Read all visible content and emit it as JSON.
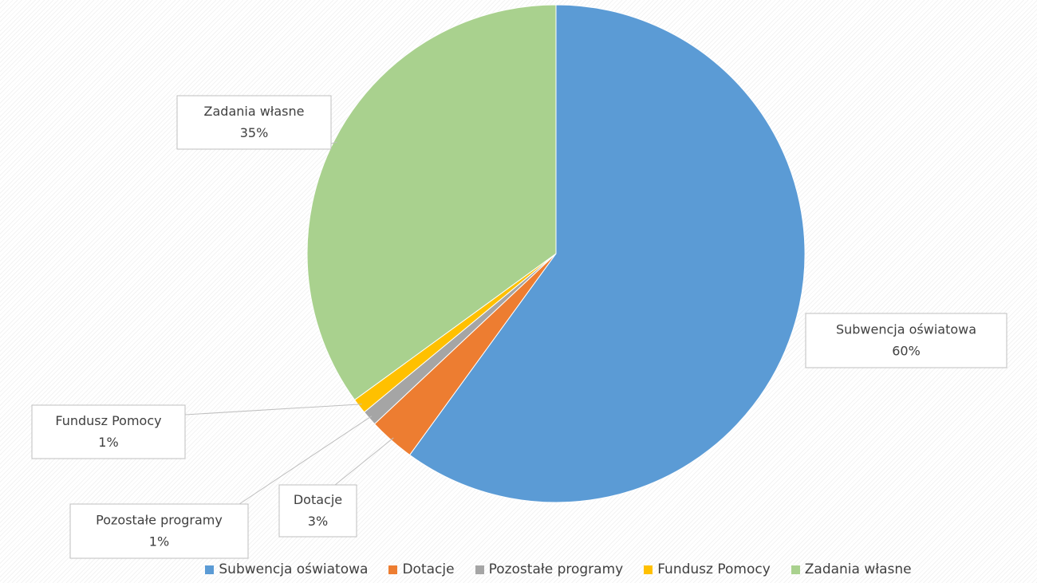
{
  "chart_data": {
    "type": "pie",
    "categories": [
      "Subwencja oświatowa",
      "Dotacje",
      "Pozostałe programy",
      "Fundusz Pomocy",
      "Zadania własne"
    ],
    "values": [
      60,
      3,
      1,
      1,
      35
    ],
    "value_labels": [
      "60%",
      "3%",
      "1%",
      "1%",
      "35%"
    ],
    "colors": [
      "#5b9bd5",
      "#ed7d31",
      "#a5a5a5",
      "#ffc000",
      "#a9d18e"
    ],
    "legend": "bottom"
  }
}
